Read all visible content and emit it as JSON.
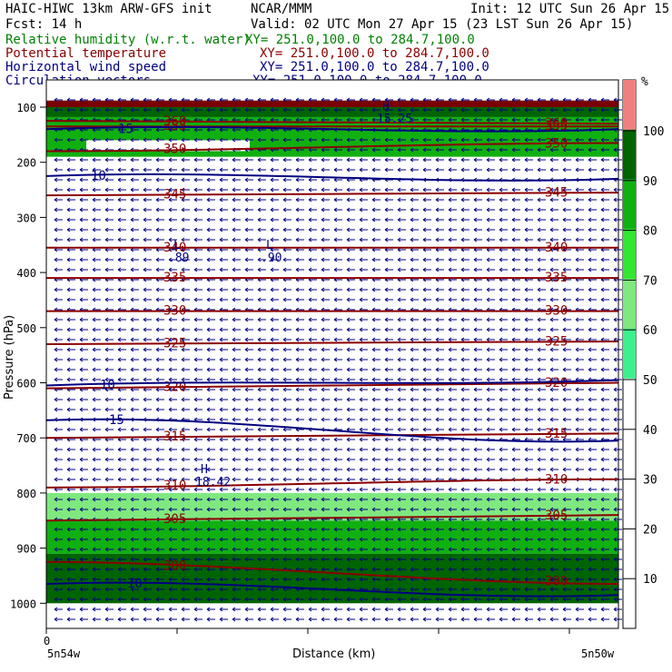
{
  "header": {
    "model": "HAIC-HIWC 13km ARW-GFS init",
    "org": "NCAR/MMM",
    "init": "Init: 12 UTC Sun 26 Apr 15",
    "fcst": "Fcst:    14 h",
    "valid": "Valid: 02 UTC Mon 27 Apr 15 (23 LST Sun 26 Apr 15)"
  },
  "fields": [
    {
      "name": "Relative humidity (w.r.t. water)",
      "xy": "XY= 251.0,100.0 to 284.7,100.0",
      "color": "#008000"
    },
    {
      "name": "Potential temperature",
      "xy": "XY= 251.0,100.0 to 284.7,100.0",
      "color": "#8b0000"
    },
    {
      "name": "Horizontal wind speed",
      "xy": "XY= 251.0,100.0 to 284.7,100.0",
      "color": "#000080"
    },
    {
      "name": "Circulation vectors",
      "xy": "XY= 251.0,100.0 to 284.7,100.0",
      "color": "#000080"
    }
  ],
  "chart_data": {
    "type": "heatmap",
    "xlabel": "Distance (km)",
    "ylabel": "Pressure (hPa)",
    "x_tick_labels": [
      "0"
    ],
    "x_end_labels": [
      "5n54w",
      "5n50w"
    ],
    "y_ticks": [
      100,
      200,
      300,
      400,
      500,
      600,
      700,
      800,
      900,
      1000
    ],
    "ylim": [
      1050,
      80
    ],
    "rh_colorbar": {
      "unit": "%",
      "ticks": [
        10,
        20,
        30,
        40,
        50,
        60,
        70,
        80,
        90,
        100
      ],
      "bands": [
        {
          "from": 50,
          "to": 60,
          "color": "#3cf08c"
        },
        {
          "from": 60,
          "to": 70,
          "color": "#7fe87f"
        },
        {
          "from": 70,
          "to": 80,
          "color": "#32e632"
        },
        {
          "from": 80,
          "to": 90,
          "color": "#10b010"
        },
        {
          "from": 90,
          "to": 100,
          "color": "#006400"
        },
        {
          "from": 100,
          "to": 110,
          "color": "#f08080"
        }
      ]
    },
    "rh_regions": [
      {
        "desc": "top layer",
        "p": [
          88,
          100
        ],
        "rh": 110
      },
      {
        "desc": "upper moist",
        "p": [
          100,
          118
        ],
        "rh": 95
      },
      {
        "desc": "upper green",
        "p": [
          118,
          190
        ],
        "rh": 85
      },
      {
        "desc": "low saturated",
        "p": [
          910,
          1000
        ],
        "rh": 95
      },
      {
        "desc": "low moist",
        "p": [
          850,
          910
        ],
        "rh": 80
      },
      {
        "desc": "low band",
        "p": [
          800,
          850
        ],
        "rh": 60
      }
    ],
    "theta_isentropes": [
      {
        "value": 300,
        "p_left": 925,
        "p_right": 965
      },
      {
        "value": 305,
        "p_left": 850,
        "p_right": 840
      },
      {
        "value": 310,
        "p_left": 790,
        "p_right": 775
      },
      {
        "value": 315,
        "p_left": 700,
        "p_right": 692
      },
      {
        "value": 320,
        "p_left": 610,
        "p_right": 600
      },
      {
        "value": 325,
        "p_left": 530,
        "p_right": 525
      },
      {
        "value": 330,
        "p_left": 470,
        "p_right": 470
      },
      {
        "value": 335,
        "p_left": 410,
        "p_right": 410
      },
      {
        "value": 340,
        "p_left": 355,
        "p_right": 355
      },
      {
        "value": 345,
        "p_left": 260,
        "p_right": 255
      },
      {
        "value": 350,
        "p_left": 180,
        "p_right": 165
      },
      {
        "value": 355,
        "p_left": 135,
        "p_right": 135
      },
      {
        "value": 360,
        "p_left": 125,
        "p_right": 130
      }
    ],
    "theta_labels": [
      "300",
      "305",
      "310",
      "315",
      "320",
      "325",
      "330",
      "335",
      "340",
      "345",
      "350",
      "355",
      "360"
    ],
    "wind_speed_contours": [
      {
        "value": 10,
        "p_left": 225,
        "p_right": 230
      },
      {
        "value": 10,
        "p_left": 605,
        "p_right": 595
      },
      {
        "value": 15,
        "p_left": 668,
        "p_right": 705
      },
      {
        "value": 15,
        "p_left": 140,
        "p_right": 140
      },
      {
        "value": 10,
        "p_left": 965,
        "p_right": 985
      }
    ],
    "wind_labels": [
      "10",
      "10",
      "15",
      "15",
      "15",
      "10",
      "15",
      "15"
    ],
    "extrema": [
      {
        "kind": "L",
        "value": ".89"
      },
      {
        "kind": "L",
        "value": ".90"
      },
      {
        "kind": "H",
        "value": "18.42"
      },
      {
        "kind": "H",
        "value": "15.25"
      }
    ]
  }
}
